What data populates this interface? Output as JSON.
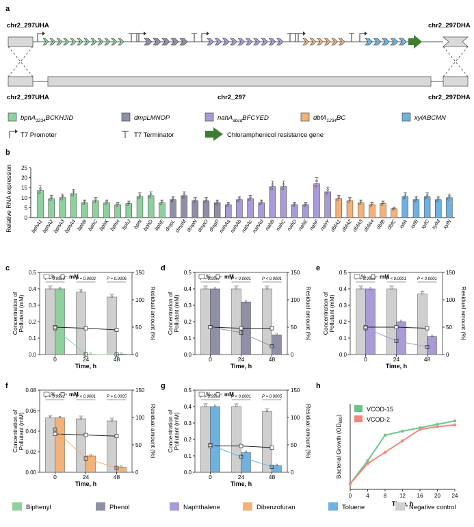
{
  "panels": {
    "a": "a",
    "b": "b",
    "c": "c",
    "d": "d",
    "e": "e",
    "f": "f",
    "g": "g",
    "h": "h"
  },
  "construct": {
    "uha_top": "chr2_297UHA",
    "dha_top": "chr2_297DHA",
    "uha_bottom": "chr2_297UHA",
    "dha_bottom": "chr2_297DHA",
    "chr_label": "chr2_297"
  },
  "legend_a": {
    "g1_main": "bphA",
    "g1_sub": "1234",
    "g1_rest": "BCKHJID",
    "g2": "dmpLMNOP",
    "g3_main": "nahA",
    "g3_sub": "abcd",
    "g3_rest": "BFCYED",
    "g4_main": "dbfA",
    "g4_sub": "1234",
    "g4_rest": "BC",
    "g5": "xylABCMN",
    "promoter": "T7 Promoter",
    "terminator": "T7 Terminator",
    "resistance": "Chloramphenicol resistance gene",
    "colors": {
      "green": "#8fd19e",
      "grey": "#8f8fa8",
      "purple": "#a99ad8",
      "orange": "#f2b27a",
      "blue": "#6fb2e0",
      "dark_green": "#3e7d32"
    }
  },
  "chart_data": [
    {
      "panel": "b",
      "type": "bar",
      "ylabel": "Relative RNA expression",
      "ylim": [
        0,
        25
      ],
      "yticks": [
        "0",
        "5",
        "10",
        "15",
        "20",
        "25"
      ],
      "categories": [
        "bphA1",
        "bphA2",
        "bphA3",
        "bphA4",
        "bphB",
        "bphC",
        "bphK",
        "bphH",
        "bphJ",
        "bphI",
        "bphD",
        "bphE",
        "dmpL",
        "dmpM",
        "dmpN",
        "dmpO",
        "dmpP",
        "nahAa",
        "nahAb",
        "nahAc",
        "nahAd",
        "nahB",
        "nahC",
        "nahD",
        "nahE",
        "nahF",
        "nahY",
        "dbfA1",
        "dbfA2",
        "dbfA3",
        "dbfA4",
        "dbfB",
        "dbfC",
        "xylA",
        "xylB",
        "xylC",
        "xylM",
        "xylN"
      ],
      "values": [
        13.5,
        9.5,
        10,
        12,
        7.5,
        8.5,
        7.5,
        6.5,
        7,
        10.5,
        11,
        7.5,
        9,
        11,
        8.5,
        8.5,
        7.5,
        6.5,
        9,
        9.5,
        7.5,
        15.5,
        15.5,
        6.5,
        6.5,
        17,
        13,
        9.5,
        8.5,
        7.5,
        6.5,
        7,
        4.5,
        10.5,
        9,
        10.5,
        9,
        10
      ],
      "groups": [
        "green",
        "green",
        "green",
        "green",
        "green",
        "green",
        "green",
        "green",
        "green",
        "green",
        "green",
        "green",
        "grey",
        "grey",
        "grey",
        "grey",
        "grey",
        "purple",
        "purple",
        "purple",
        "purple",
        "purple",
        "purple",
        "purple",
        "purple",
        "purple",
        "purple",
        "orange",
        "orange",
        "orange",
        "orange",
        "orange",
        "orange",
        "blue",
        "blue",
        "blue",
        "blue",
        "blue"
      ]
    },
    {
      "panel": "c",
      "type": "bar",
      "xlabel": "Time, h",
      "ylabel_left": "Concentration of Pollutant (mM)",
      "ylabel_right": "Residual amount (%)",
      "categories": [
        "0",
        "24",
        "48"
      ],
      "ylim": [
        0,
        0.5
      ],
      "yticks": [
        "0.0",
        "0.1",
        "0.2",
        "0.3",
        "0.4",
        "0.5"
      ],
      "y2lim": [
        0,
        150
      ],
      "y2ticks": [
        "0",
        "50",
        "100",
        "150"
      ],
      "legend_pct": "%",
      "legend_mm": "mM",
      "control": [
        0.4,
        0.38,
        0.35
      ],
      "treated": [
        0.4,
        0.0,
        0.0
      ],
      "pct_control": [
        50,
        48,
        45
      ],
      "pct_treated": [
        48,
        0,
        0
      ],
      "pvalues": [
        "P = 0.9989",
        "P = 0.0002",
        "P = 0.0006"
      ],
      "color": "green"
    },
    {
      "panel": "d",
      "type": "bar",
      "xlabel": "Time, h",
      "ylabel_left": "Concentration of Pollutant (mM)",
      "ylabel_right": "Residual amount (%)",
      "categories": [
        "0",
        "24",
        "48"
      ],
      "ylim": [
        0,
        0.5
      ],
      "yticks": [
        "0.0",
        "0.1",
        "0.2",
        "0.3",
        "0.4",
        "0.5"
      ],
      "y2lim": [
        0,
        150
      ],
      "y2ticks": [
        "0",
        "50",
        "100",
        "150"
      ],
      "legend_pct": "%",
      "legend_mm": "mM",
      "control": [
        0.4,
        0.4,
        0.4
      ],
      "treated": [
        0.4,
        0.32,
        0.12
      ],
      "pct_control": [
        50,
        48,
        48
      ],
      "pct_treated": [
        50,
        40,
        15
      ],
      "pvalues": [
        "P = 0.9997",
        "P < 0.0001",
        "P < 0.0001"
      ],
      "color": "grey"
    },
    {
      "panel": "e",
      "type": "bar",
      "xlabel": "Time, h",
      "ylabel_left": "Concentration of Pollutant (mM)",
      "ylabel_right": "Residual amount (%)",
      "categories": [
        "0",
        "24",
        "48"
      ],
      "ylim": [
        0,
        0.5
      ],
      "yticks": [
        "0.0",
        "0.1",
        "0.2",
        "0.3",
        "0.4",
        "0.5"
      ],
      "y2lim": [
        0,
        150
      ],
      "y2ticks": [
        "0",
        "50",
        "100",
        "150"
      ],
      "legend_pct": "%",
      "legend_mm": "mM",
      "control": [
        0.4,
        0.4,
        0.37
      ],
      "treated": [
        0.4,
        0.2,
        0.11
      ],
      "pct_control": [
        50,
        50,
        48
      ],
      "pct_treated": [
        48,
        25,
        14
      ],
      "pvalues": [
        "P > 0.9999",
        "P < 0.0001",
        "P < 0.0001"
      ],
      "color": "purple"
    },
    {
      "panel": "f",
      "type": "bar",
      "xlabel": "Time, h",
      "ylabel_left": "Concentration of Pollutant (mM)",
      "ylabel_right": "Residual amount (%)",
      "categories": [
        "0",
        "24",
        "48"
      ],
      "ylim": [
        0,
        0.08
      ],
      "yticks": [
        "0.00",
        "0.02",
        "0.04",
        "0.06",
        "0.08"
      ],
      "y2lim": [
        0,
        150
      ],
      "y2ticks": [
        "0",
        "50",
        "100",
        "150"
      ],
      "legend_pct": "%",
      "legend_mm": "mM",
      "control": [
        0.053,
        0.052,
        0.05
      ],
      "treated": [
        0.053,
        0.016,
        0.005
      ],
      "pct_control": [
        70,
        68,
        66
      ],
      "pct_treated": [
        78,
        25,
        8
      ],
      "pvalues": [
        "P = 0.9992",
        "P < 0.0001",
        "P = 0.0005"
      ],
      "color": "orange"
    },
    {
      "panel": "g",
      "type": "bar",
      "xlabel": "Time, h",
      "ylabel_left": "Concentration of Pollutant (mM)",
      "ylabel_right": "Residual amount (%)",
      "categories": [
        "0",
        "24",
        "48"
      ],
      "ylim": [
        0,
        0.5
      ],
      "yticks": [
        "0.0",
        "0.1",
        "0.2",
        "0.3",
        "0.4",
        "0.5"
      ],
      "y2lim": [
        0,
        150
      ],
      "y2ticks": [
        "0",
        "50",
        "100",
        "150"
      ],
      "legend_pct": "%",
      "legend_mm": "mM",
      "control": [
        0.4,
        0.4,
        0.37
      ],
      "treated": [
        0.4,
        0.12,
        0.04
      ],
      "pct_control": [
        48,
        48,
        45
      ],
      "pct_treated": [
        50,
        28,
        10
      ],
      "pvalues": [
        "P > 0.9999",
        "P < 0.0001",
        "P = 0.0005"
      ],
      "color": "blue"
    },
    {
      "panel": "h",
      "type": "line",
      "xlabel": "Time, h",
      "ylabel": "Bacterial Growth (OD",
      "ylabel_sub": "600",
      "ylabel_close": ")",
      "x": [
        0,
        4,
        8,
        12,
        16,
        20,
        24
      ],
      "xlim": [
        0,
        24
      ],
      "ylim": [
        0,
        1.5
      ],
      "series": [
        {
          "name": "VCOD-15",
          "values": [
            0.1,
            0.5,
            0.95,
            1.02,
            1.08,
            1.14,
            1.2
          ],
          "color": "#6cc486"
        },
        {
          "name": "VCOD-2",
          "values": [
            0.1,
            0.45,
            0.65,
            0.85,
            1.05,
            1.1,
            1.13
          ],
          "color": "#f4877b"
        }
      ]
    }
  ],
  "bottom_legend": [
    {
      "label": "Biphenyl",
      "color": "#8fd19e"
    },
    {
      "label": "Phenol",
      "color": "#8f8fa8"
    },
    {
      "label": "Naphthalene",
      "color": "#a99ad8"
    },
    {
      "label": "Dibenzofuran",
      "color": "#f2b27a"
    },
    {
      "label": "Toluene",
      "color": "#6fb2e0"
    },
    {
      "label": "Negative control",
      "color": "#cfcfcf"
    }
  ]
}
